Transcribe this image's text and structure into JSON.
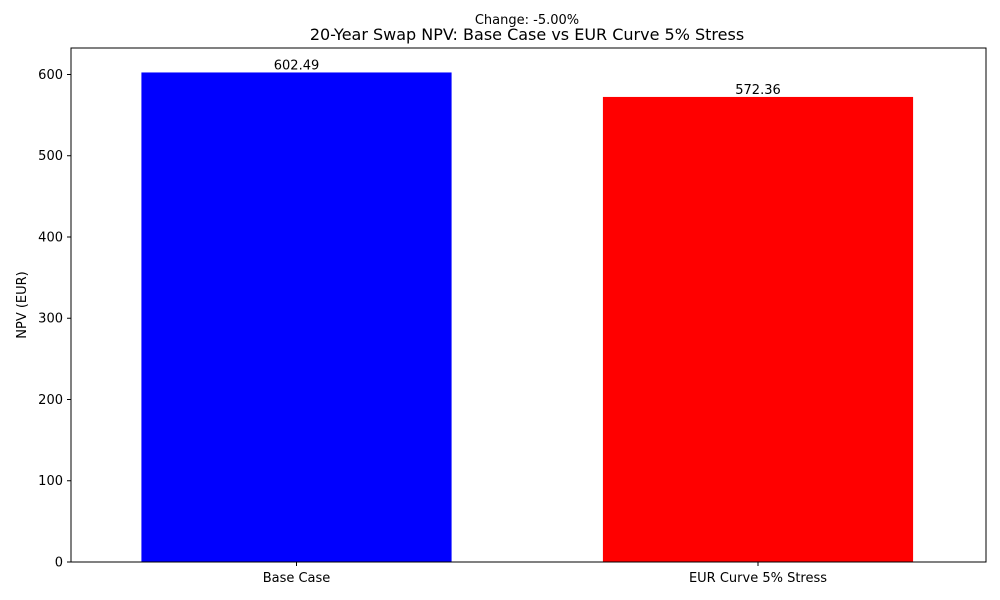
{
  "chart_data": {
    "type": "bar",
    "title": "20-Year Swap NPV: Base Case vs EUR Curve 5% Stress",
    "subtitle": "Change: -5.00%",
    "xlabel": "",
    "ylabel": "NPV (EUR)",
    "categories": [
      "Base Case",
      "EUR Curve 5% Stress"
    ],
    "values": [
      602.49,
      572.36
    ],
    "value_labels": [
      "602.49",
      "572.36"
    ],
    "colors": [
      "#0000ff",
      "#ff0000"
    ],
    "ylim": [
      0,
      632.6
    ],
    "yticks": [
      0,
      100,
      200,
      300,
      400,
      500,
      600
    ],
    "grid": false
  }
}
